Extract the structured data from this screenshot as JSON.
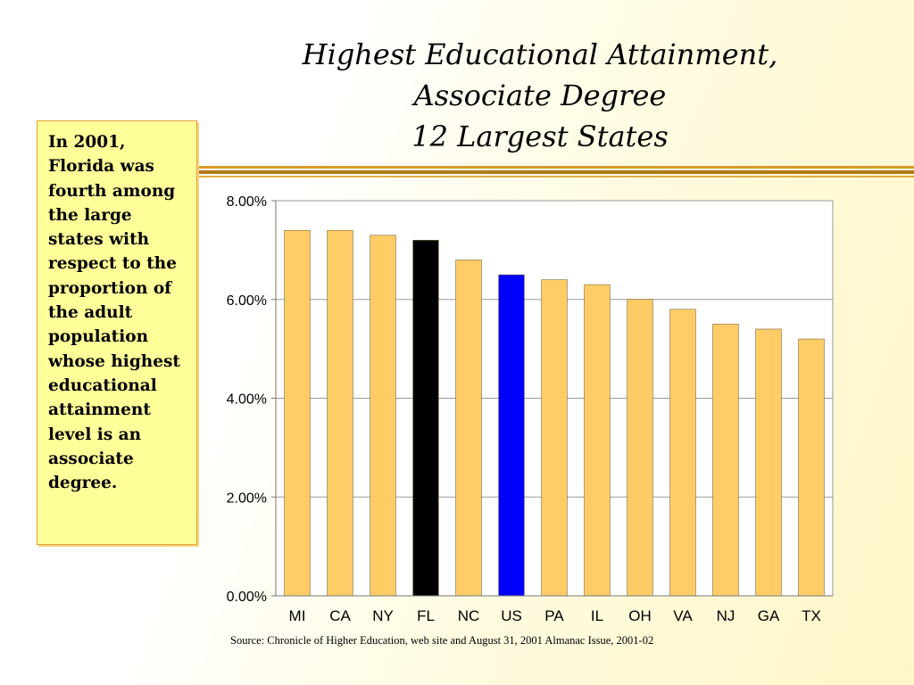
{
  "slide": {
    "title_lines": [
      "Highest Educational Attainment,",
      "Associate Degree",
      "12 Largest States"
    ],
    "sidebar_text": "In 2001, Florida  was fourth among the large states with respect to the proportion of the adult population whose highest educational attainment level is an associate degree.",
    "source": "Source: Chronicle of Higher Education, web site and August 31, 2001 Almanac Issue, 2001-02"
  },
  "colors": {
    "bar_default": "#ffcc66",
    "bar_highlight_fl": "#000000",
    "bar_highlight_us": "#0000ff",
    "rule": "#c8901c"
  },
  "chart_data": {
    "type": "bar",
    "title": "Highest Educational Attainment, Associate Degree 12 Largest States",
    "categories": [
      "MI",
      "CA",
      "NY",
      "FL",
      "NC",
      "US",
      "PA",
      "IL",
      "OH",
      "VA",
      "NJ",
      "GA",
      "TX"
    ],
    "values": [
      7.4,
      7.4,
      7.3,
      7.2,
      6.8,
      6.5,
      6.4,
      6.3,
      6.0,
      5.8,
      5.5,
      5.4,
      5.2
    ],
    "highlight": {
      "FL": "bar_highlight_fl",
      "US": "bar_highlight_us"
    },
    "ylim": [
      0,
      8
    ],
    "yticks": [
      0,
      2,
      4,
      6,
      8
    ],
    "ytick_labels": [
      "0.00%",
      "2.00%",
      "4.00%",
      "6.00%",
      "8.00%"
    ],
    "xlabel": "",
    "ylabel": "",
    "grid": true,
    "legend": "none"
  }
}
